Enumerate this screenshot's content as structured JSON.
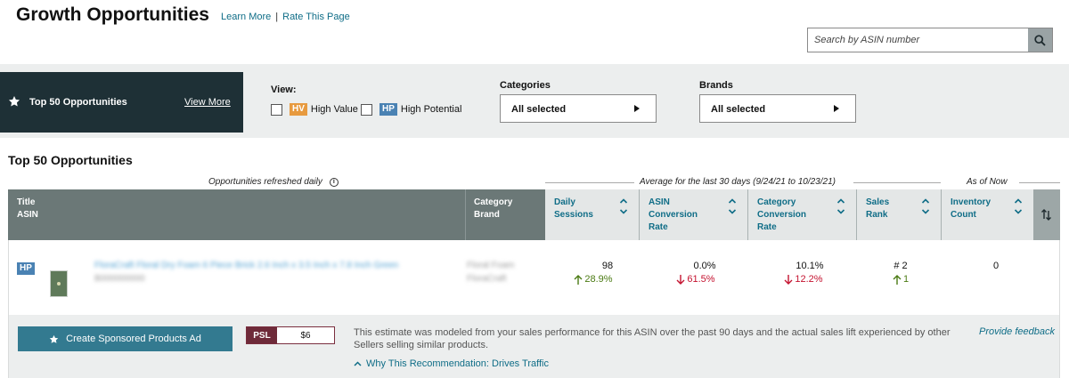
{
  "header": {
    "title": "Growth Opportunities",
    "learn_more": "Learn More",
    "separator": "|",
    "rate_page": "Rate This Page",
    "search_placeholder": "Search by ASIN number"
  },
  "top_panel": {
    "label": "Top 50 Opportunities",
    "view_more": "View More"
  },
  "view": {
    "label": "View:",
    "options": [
      {
        "badge": "HV",
        "label": "High Value",
        "badge_color": "#e79a3f"
      },
      {
        "badge": "HP",
        "label": "High Potential",
        "badge_color": "#4a82b3"
      }
    ]
  },
  "filters": {
    "categories": {
      "label": "Categories",
      "value": "All selected"
    },
    "brands": {
      "label": "Brands",
      "value": "All selected"
    }
  },
  "section": {
    "title": "Top 50 Opportunities",
    "refreshed": "Opportunities refreshed daily",
    "average_caption": "Average for the last 30 days (9/24/21 to 10/23/21)",
    "as_of_caption": "As of Now"
  },
  "table": {
    "columns": [
      {
        "lines": [
          "Title",
          "ASIN"
        ]
      },
      {
        "lines": [
          "Category",
          "Brand"
        ]
      },
      {
        "lines": [
          "Daily",
          "Sessions"
        ]
      },
      {
        "lines": [
          "ASIN",
          "Conversion",
          "Rate"
        ]
      },
      {
        "lines": [
          "Category",
          "Conversion",
          "Rate"
        ]
      },
      {
        "lines": [
          "Sales",
          "Rank"
        ]
      },
      {
        "lines": [
          "Inventory",
          "Count"
        ]
      }
    ],
    "row": {
      "badge": "HP",
      "title": "FloraCraft Floral Dry Foam 6 Piece Brick 2.6 Inch x 3.5 Inch x 7.8 Inch Green",
      "asin": "B000000000",
      "category": "Floral Foam",
      "brand": "FloraCraft",
      "daily_sessions": "98",
      "daily_sessions_delta": "28.9%",
      "asin_conv": "0.0%",
      "asin_conv_delta": "61.5%",
      "cat_conv": "10.1%",
      "cat_conv_delta": "12.2%",
      "sales_rank": "# 2",
      "sales_rank_delta": "1",
      "inventory": "0"
    }
  },
  "recommendation": {
    "cta": "Create Sponsored Products Ad",
    "psl_tag": "PSL",
    "psl_value": "$6",
    "estimate": "This estimate was modeled from your sales performance for this ASIN over the past 90 days and the actual sales lift experienced by other Sellers selling similar products.",
    "feedback": "Provide feedback",
    "why": "Why This Recommendation: Drives Traffic"
  },
  "colors": {
    "dark_panel": "#1e3036",
    "header_dark": "#6b7877",
    "link": "#0f6d87",
    "positive": "#4a7a12",
    "negative": "#c4122f",
    "cta": "#337a90",
    "psl": "#6e2a39"
  }
}
